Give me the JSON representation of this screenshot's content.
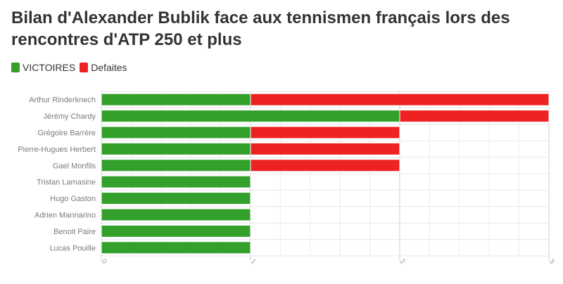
{
  "title": "Bilan d'Alexander Bublik face aux tennismen français lors des rencontres d'ATP 250 et plus",
  "legend": [
    {
      "label": "VICTOIRES",
      "color": "#33a02c"
    },
    {
      "label": "Defaites",
      "color": "#ee2222"
    }
  ],
  "chart_data": {
    "type": "bar",
    "orientation": "horizontal",
    "stacked": true,
    "categories": [
      "Arthur Rinderknech",
      "Jérémy Chardy",
      "Grégoire Barrère",
      "Pierre-Hugues Herbert",
      "Gael Monfils",
      "Tristan Lamasine",
      "Hugo Gaston",
      "Adrien Mannarino",
      "Benoit Paire",
      "Lucas Pouille"
    ],
    "series": [
      {
        "name": "VICTOIRES",
        "color": "#33a02c",
        "values": [
          1,
          2,
          1,
          1,
          1,
          1,
          1,
          1,
          1,
          1
        ]
      },
      {
        "name": "Defaites",
        "color": "#ee2222",
        "values": [
          2,
          1,
          1,
          1,
          1,
          0,
          0,
          0,
          0,
          0
        ]
      }
    ],
    "xlim": [
      0,
      3
    ],
    "xticks": [
      "0",
      "1",
      "2",
      "3"
    ],
    "grid": true,
    "legend_position": "top-left"
  }
}
